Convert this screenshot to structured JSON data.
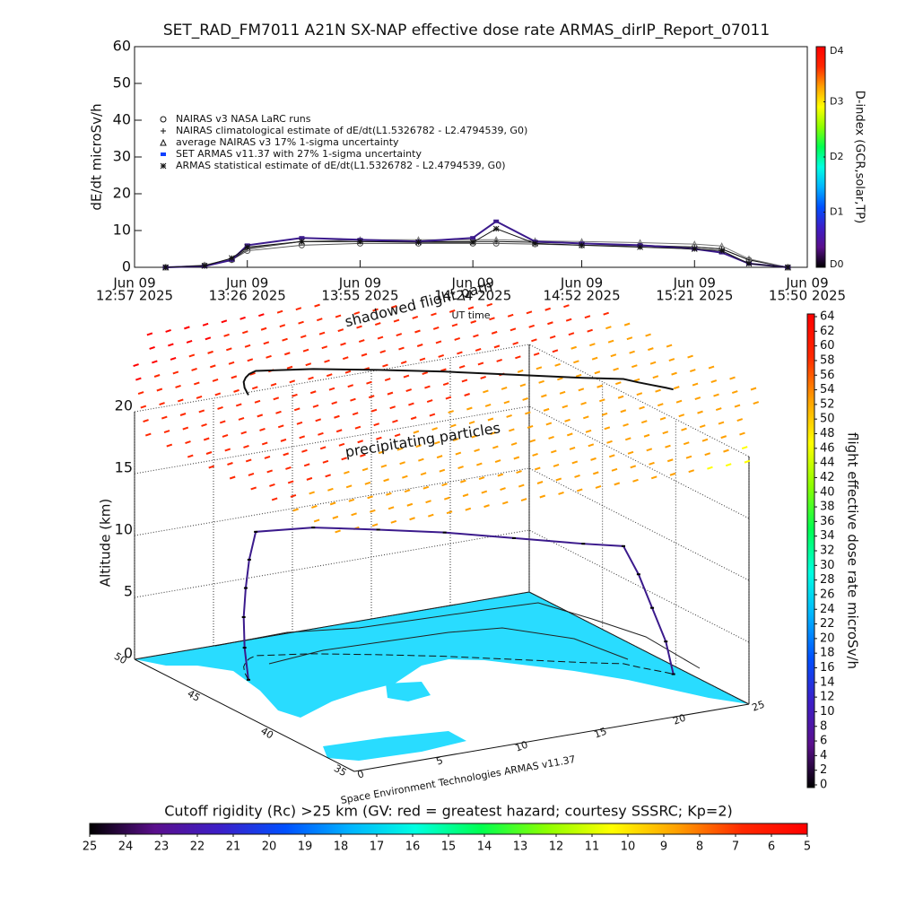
{
  "chart_data": [
    {
      "type": "line",
      "title": "SET_RAD_FM7011  A21N SX-NAP effective dose rate ARMAS_dirIP_Report_07011",
      "ylabel": "dE/dt microSv/h",
      "xlabel": "UT time",
      "xlim": [
        "12:57",
        "15:50"
      ],
      "xticks": [
        {
          "value": "12:57",
          "label": [
            "Jun 09",
            "12:57 2025"
          ]
        },
        {
          "value": "13:26",
          "label": [
            "Jun 09",
            "13:26 2025"
          ]
        },
        {
          "value": "13:55",
          "label": [
            "Jun 09",
            "13:55 2025"
          ]
        },
        {
          "value": "14:24",
          "label": [
            "Jun 09",
            "14:24 2025"
          ]
        },
        {
          "value": "14:52",
          "label": [
            "Jun 09",
            "14:52 2025"
          ]
        },
        {
          "value": "15:21",
          "label": [
            "Jun 09",
            "15:21 2025"
          ]
        },
        {
          "value": "15:50",
          "label": [
            "Jun 09",
            "15:50 2025"
          ]
        }
      ],
      "ylim": [
        0,
        60
      ],
      "yticks": [
        0,
        10,
        20,
        30,
        40,
        50,
        60
      ],
      "x": [
        "13:05",
        "13:15",
        "13:22",
        "13:26",
        "13:40",
        "13:55",
        "14:10",
        "14:24",
        "14:30",
        "14:40",
        "14:52",
        "15:07",
        "15:21",
        "15:28",
        "15:35",
        "15:45"
      ],
      "series": [
        {
          "name": "NAIRAS v3 NASA LaRC runs",
          "marker": "circle",
          "color": "#555555",
          "values": [
            0,
            0.5,
            2,
            4.5,
            6,
            6.5,
            6.5,
            6.5,
            6.5,
            6.3,
            6,
            5.8,
            5.5,
            5,
            2,
            0
          ]
        },
        {
          "name": "NAIRAS climatological estimate of dE/dt(L1.5326782 - L2.4794539, G0)",
          "marker": "plus",
          "color": "#111111",
          "values": [
            0,
            0.5,
            2,
            5,
            7,
            7,
            7,
            7,
            7,
            6.8,
            6.5,
            6,
            5.5,
            5,
            2,
            0
          ]
        },
        {
          "name": "average NAIRAS v3 17% 1-sigma uncertainty",
          "marker": "triangle",
          "color": "#777777",
          "values": [
            0,
            0.6,
            2.3,
            5.2,
            7,
            7.5,
            7.5,
            7.5,
            7.5,
            7.2,
            7,
            6.7,
            6.3,
            5.8,
            2.3,
            0
          ]
        },
        {
          "name": "SET ARMAS v11.37 with 27% 1-sigma uncertainty",
          "marker": "square",
          "color": "#3b1a8c",
          "values": [
            0,
            0.3,
            2,
            6,
            8,
            7.5,
            7,
            8,
            12.5,
            7,
            6.5,
            6,
            5,
            4,
            1,
            0
          ]
        },
        {
          "name": "ARMAS statistical estimate of dE/dt(L1.5326782 - L2.4794539, G0)",
          "marker": "asterisk",
          "color": "#111111",
          "values": [
            0,
            0.4,
            2.5,
            5.5,
            7,
            7,
            6.8,
            6.8,
            10.5,
            6.5,
            6,
            5.5,
            5,
            4.5,
            1,
            0
          ]
        }
      ],
      "colorbar": {
        "label": "D-index (GCR,solar,TP)",
        "lim": [
          0,
          4
        ],
        "ticks": [
          {
            "value": 0,
            "label": "D0"
          },
          {
            "value": 1,
            "label": "D1"
          },
          {
            "value": 2,
            "label": "D2"
          },
          {
            "value": 3,
            "label": "D3"
          },
          {
            "value": 4,
            "label": "D4"
          }
        ],
        "colors": [
          "#000000",
          "#5a0f8c",
          "#3c1fc8",
          "#0050ff",
          "#00b4ff",
          "#00ffe0",
          "#00ff50",
          "#8cff00",
          "#ffff00",
          "#ffa000",
          "#ff2800",
          "#ff0000"
        ]
      }
    },
    {
      "type": "scatter3d",
      "annotations": [
        "precipitating particles",
        "shadowed flight path"
      ],
      "zlabel": "Altitude (km)",
      "zlim": [
        0,
        23
      ],
      "zticks": [
        0,
        5,
        10,
        15,
        20
      ],
      "xlim": [
        0,
        25
      ],
      "xticks": [
        0,
        5,
        10,
        15,
        20,
        25
      ],
      "ylim": [
        35,
        50
      ],
      "yticks": [
        35,
        40,
        45,
        50
      ],
      "footnote": "Space Environment Technologies ARMAS v11.37",
      "series": [
        {
          "color": "#3b1a8c",
          "lon": [
            3.5,
            4,
            4.5,
            5,
            5.5,
            6.1,
            9,
            12,
            15,
            18,
            21,
            22.8,
            23.2,
            23.6,
            24,
            24.2
          ],
          "lat": [
            46,
            46.8,
            47.4,
            47.8,
            48.1,
            48.3,
            47.5,
            46.3,
            45,
            43.5,
            42,
            41.2,
            40.6,
            40.1,
            39.6,
            39.3
          ],
          "values": [
            0,
            2,
            4,
            6,
            8,
            10,
            10.2,
            10.1,
            10,
            9.8,
            9.6,
            9.5,
            7.5,
            5,
            2.5,
            0
          ]
        }
      ],
      "colorbar": {
        "label": "flight effective dose rate microSv/h",
        "lim": [
          0,
          64
        ],
        "ticks": [
          0,
          2,
          4,
          6,
          8,
          10,
          12,
          14,
          16,
          18,
          20,
          22,
          24,
          26,
          28,
          30,
          32,
          34,
          36,
          38,
          40,
          42,
          44,
          46,
          48,
          50,
          52,
          54,
          56,
          58,
          60,
          62,
          64
        ],
        "colors": [
          "#000000",
          "#5a0f8c",
          "#3c1fc8",
          "#0050ff",
          "#00b4ff",
          "#00ffe0",
          "#00ff50",
          "#8cff00",
          "#ffff00",
          "#ffa000",
          "#ff2800",
          "#ff0000"
        ]
      }
    },
    {
      "type": "colorbar",
      "title": "Cutoff rigidity (Rc) >25 km (GV: red = greatest hazard; courtesy SSSRC; Kp=2)",
      "xlim": [
        25,
        5
      ],
      "xticks": [
        25,
        24,
        23,
        22,
        21,
        20,
        19,
        18,
        17,
        16,
        15,
        14,
        13,
        12,
        11,
        10,
        9,
        8,
        7,
        6,
        5
      ],
      "colors": [
        "#000000",
        "#5a0f8c",
        "#3c1fc8",
        "#0050ff",
        "#00b4ff",
        "#00ffe0",
        "#00ff50",
        "#8cff00",
        "#ffff00",
        "#ffa000",
        "#ff2800",
        "#ff0000"
      ]
    }
  ]
}
